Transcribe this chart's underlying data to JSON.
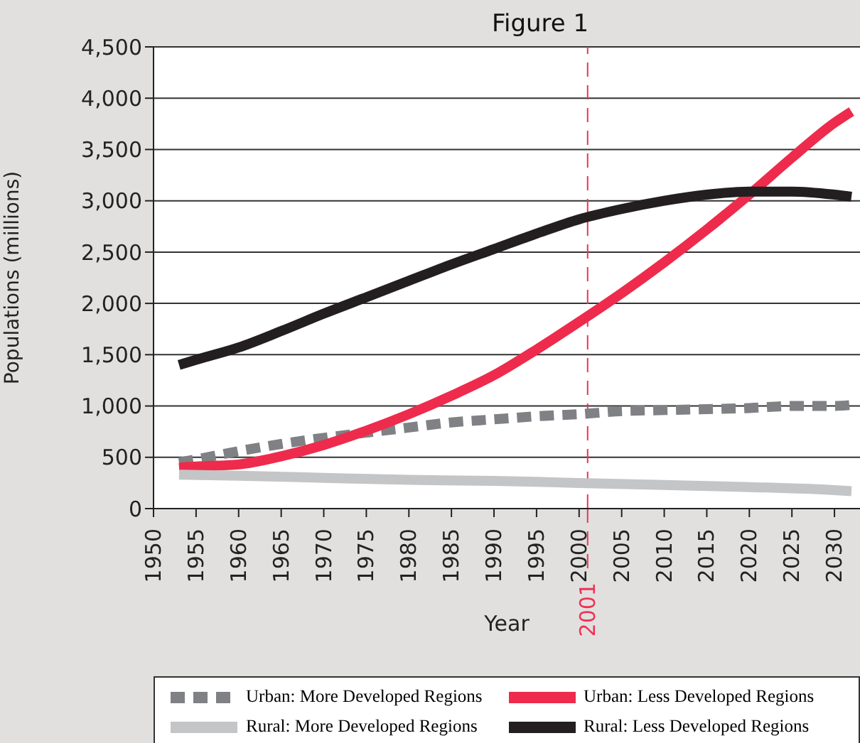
{
  "chart_data": {
    "type": "line",
    "title": "Figure 1",
    "xlabel": "Year",
    "ylabel": "Populations (millions)",
    "xlim": [
      1950,
      2033
    ],
    "xticks": [
      1950,
      1955,
      1960,
      1965,
      1970,
      1975,
      1980,
      1985,
      1990,
      1995,
      2000,
      2005,
      2010,
      2015,
      2020,
      2025,
      2030
    ],
    "ylim": [
      0,
      4500
    ],
    "yticks": [
      0,
      500,
      {
        "value": 1000,
        "label": "1,000"
      },
      {
        "value": 1500,
        "label": "1,500"
      },
      {
        "value": 2000,
        "label": "2,000"
      },
      {
        "value": 2500,
        "label": "2,500"
      },
      {
        "value": 3000,
        "label": "3,000"
      },
      {
        "value": 3500,
        "label": "3,500"
      },
      {
        "value": 4000,
        "label": "4,000"
      },
      {
        "value": 4500,
        "label": "4,500"
      }
    ],
    "grid": "y",
    "legend": "bottom",
    "marker": "none",
    "ref_lines": [
      {
        "axis": "x",
        "value": 2001,
        "label": "2001",
        "color": "#ee3355",
        "line_style": "dashed"
      }
    ],
    "series": [
      {
        "name": "Urban: More Developed Regions",
        "color": "#808184",
        "line_style": "dashed",
        "x": [
          1953,
          1955,
          1960,
          1965,
          1970,
          1975,
          1980,
          1985,
          1990,
          1995,
          2000,
          2005,
          2010,
          2015,
          2020,
          2025,
          2030,
          2032
        ],
        "values": [
          450,
          480,
          560,
          630,
          690,
          740,
          790,
          840,
          870,
          900,
          920,
          950,
          960,
          970,
          980,
          1000,
          1000,
          1010
        ]
      },
      {
        "name": "Urban: Less Developed Regions",
        "color": "#ee2b4c",
        "line_style": "solid",
        "x": [
          1953,
          1955,
          1960,
          1965,
          1970,
          1975,
          1980,
          1985,
          1990,
          1995,
          2000,
          2005,
          2010,
          2015,
          2020,
          2025,
          2030,
          2032
        ],
        "values": [
          400,
          410,
          430,
          510,
          620,
          760,
          920,
          1100,
          1300,
          1550,
          1820,
          2100,
          2400,
          2720,
          3060,
          3420,
          3760,
          3870
        ]
      },
      {
        "name": "Rural: More Developed Regions",
        "color": "#c4c5c7",
        "line_style": "solid",
        "x": [
          1953,
          1960,
          1970,
          1980,
          1990,
          2000,
          2010,
          2020,
          2030,
          2032
        ],
        "values": [
          330,
          320,
          300,
          280,
          270,
          250,
          230,
          210,
          180,
          170
        ]
      },
      {
        "name": "Rural: Less Developed Regions",
        "color": "#231f20",
        "line_style": "solid",
        "x": [
          1953,
          1955,
          1960,
          1965,
          1970,
          1975,
          1980,
          1985,
          1990,
          1995,
          2000,
          2005,
          2010,
          2015,
          2020,
          2025,
          2030,
          2032
        ],
        "values": [
          1400,
          1450,
          1570,
          1730,
          1900,
          2060,
          2220,
          2380,
          2530,
          2680,
          2820,
          2920,
          3000,
          3060,
          3090,
          3090,
          3060,
          3040
        ]
      }
    ]
  }
}
